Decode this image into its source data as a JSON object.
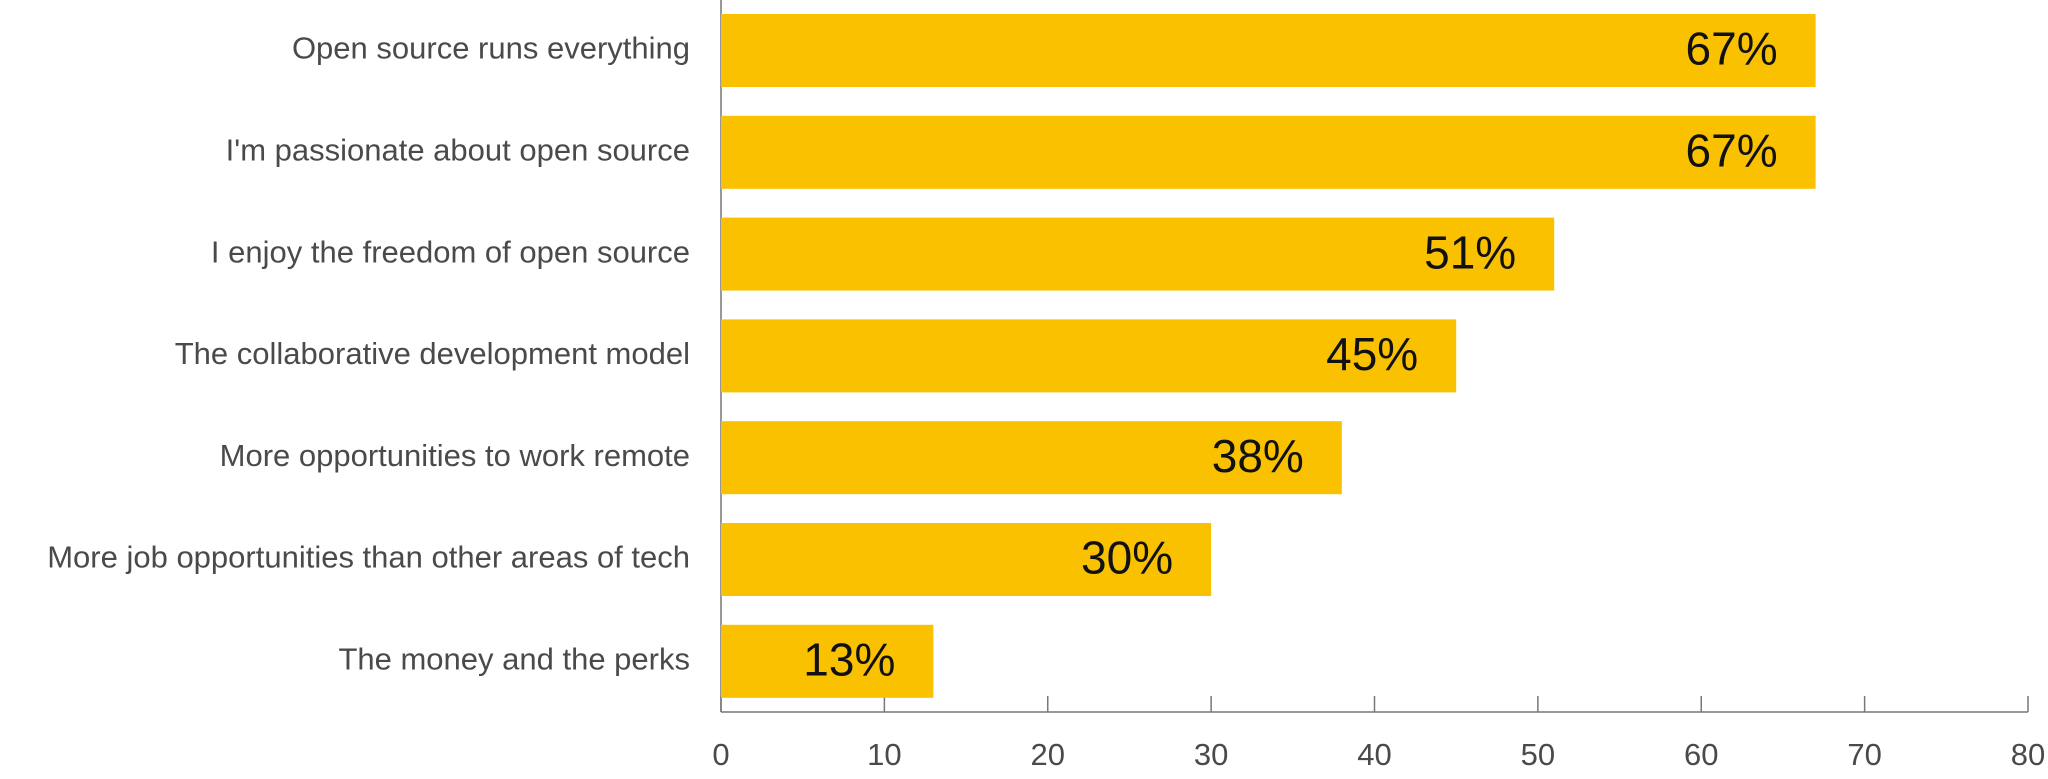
{
  "chart_data": {
    "type": "bar",
    "orientation": "horizontal",
    "categories": [
      "Open source runs everything",
      "I'm passionate about open source",
      "I enjoy the freedom of open source",
      "The collaborative development model",
      "More opportunities to work remote",
      "More job opportunities than other areas of tech",
      "The money and the perks"
    ],
    "values": [
      67,
      67,
      51,
      45,
      38,
      30,
      13
    ],
    "value_labels": [
      "67%",
      "67%",
      "51%",
      "45%",
      "38%",
      "30%",
      "13%"
    ],
    "color": "#f9c100",
    "xlim": [
      0,
      80
    ],
    "xticks": [
      0,
      10,
      20,
      30,
      40,
      50,
      60,
      70,
      80
    ]
  }
}
